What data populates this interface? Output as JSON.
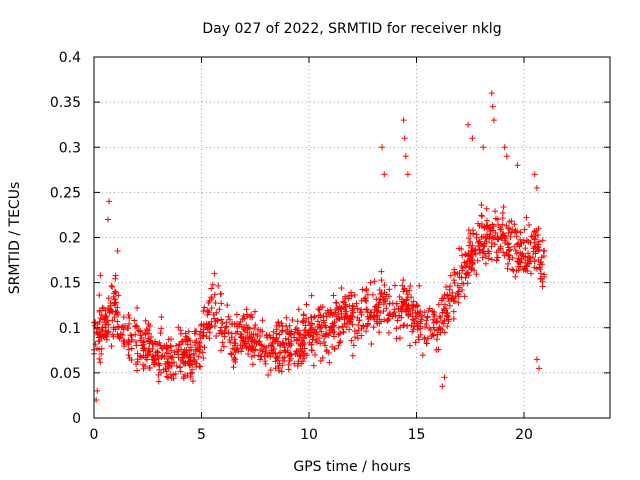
{
  "chart_data": {
    "type": "scatter",
    "title": "Day 027 of 2022, SRMTID for receiver nklg",
    "xlabel": "GPS time / hours",
    "ylabel": "SRMTID / TECUs",
    "xlim": [
      0,
      24
    ],
    "ylim": [
      0,
      0.4
    ],
    "x_ticks": [
      0,
      5,
      10,
      15,
      20
    ],
    "x_tick_labels": [
      "0",
      "5",
      "10",
      "15",
      "20"
    ],
    "y_ticks": [
      0,
      0.05,
      0.1,
      0.15,
      0.2,
      0.25,
      0.3,
      0.35,
      0.4
    ],
    "y_tick_labels": [
      "0",
      "0.05",
      "0.1",
      "0.15",
      "0.2",
      "0.25",
      "0.3",
      "0.35",
      "0.4"
    ],
    "grid": true,
    "marker": "plus",
    "color": "#ff0000",
    "series": [
      {
        "name": "SRMTID",
        "trend": [
          [
            0.0,
            0.085
          ],
          [
            0.5,
            0.11
          ],
          [
            1.0,
            0.12
          ],
          [
            1.5,
            0.09
          ],
          [
            2.0,
            0.085
          ],
          [
            2.5,
            0.075
          ],
          [
            3.0,
            0.07
          ],
          [
            3.5,
            0.065
          ],
          [
            4.0,
            0.07
          ],
          [
            4.5,
            0.07
          ],
          [
            5.0,
            0.08
          ],
          [
            5.5,
            0.12
          ],
          [
            6.0,
            0.105
          ],
          [
            6.5,
            0.085
          ],
          [
            7.0,
            0.09
          ],
          [
            7.5,
            0.085
          ],
          [
            8.0,
            0.08
          ],
          [
            8.5,
            0.08
          ],
          [
            9.0,
            0.085
          ],
          [
            9.5,
            0.085
          ],
          [
            10.0,
            0.09
          ],
          [
            10.5,
            0.1
          ],
          [
            11.0,
            0.1
          ],
          [
            11.5,
            0.11
          ],
          [
            12.0,
            0.11
          ],
          [
            12.5,
            0.115
          ],
          [
            13.0,
            0.12
          ],
          [
            13.5,
            0.13
          ],
          [
            14.0,
            0.12
          ],
          [
            14.5,
            0.13
          ],
          [
            15.0,
            0.11
          ],
          [
            15.5,
            0.1
          ],
          [
            16.0,
            0.105
          ],
          [
            16.5,
            0.13
          ],
          [
            17.0,
            0.155
          ],
          [
            17.5,
            0.175
          ],
          [
            18.0,
            0.2
          ],
          [
            18.5,
            0.205
          ],
          [
            19.0,
            0.195
          ],
          [
            19.5,
            0.19
          ],
          [
            20.0,
            0.185
          ],
          [
            20.5,
            0.19
          ],
          [
            20.9,
            0.17
          ]
        ],
        "spread": 0.028,
        "spikes": [
          [
            0.7,
            0.24
          ],
          [
            0.65,
            0.22
          ],
          [
            1.1,
            0.185
          ],
          [
            0.3,
            0.158
          ],
          [
            5.6,
            0.16
          ],
          [
            13.4,
            0.3
          ],
          [
            13.5,
            0.27
          ],
          [
            14.4,
            0.33
          ],
          [
            14.45,
            0.31
          ],
          [
            14.5,
            0.29
          ],
          [
            14.6,
            0.27
          ],
          [
            17.4,
            0.325
          ],
          [
            17.6,
            0.31
          ],
          [
            18.1,
            0.3
          ],
          [
            18.5,
            0.36
          ],
          [
            18.55,
            0.345
          ],
          [
            18.6,
            0.33
          ],
          [
            19.1,
            0.3
          ],
          [
            19.2,
            0.29
          ],
          [
            19.7,
            0.28
          ],
          [
            20.5,
            0.27
          ],
          [
            20.6,
            0.255
          ],
          [
            0.1,
            0.02
          ],
          [
            0.15,
            0.03
          ],
          [
            16.2,
            0.035
          ],
          [
            16.3,
            0.045
          ],
          [
            20.7,
            0.055
          ],
          [
            20.6,
            0.065
          ]
        ],
        "n_points": 1500,
        "x_end": 20.95
      }
    ]
  }
}
